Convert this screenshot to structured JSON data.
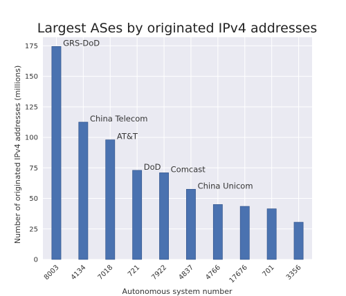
{
  "chart_data": {
    "type": "bar",
    "title": "Largest ASes by originated IPv4 addresses",
    "xlabel": "Autonomous system number",
    "ylabel": "Number of originated IPv4 addresses (millions)",
    "categories": [
      "8003",
      "4134",
      "7018",
      "721",
      "7922",
      "4837",
      "4766",
      "17676",
      "701",
      "3356"
    ],
    "values": [
      174.5,
      112.5,
      98,
      73,
      71,
      57.5,
      45,
      43.5,
      41.5,
      30.5
    ],
    "annotations": [
      "GRS-DoD",
      "China Telecom",
      "AT&T",
      "DoD",
      "Comcast",
      "China Unicom",
      "",
      "",
      "",
      ""
    ],
    "yticks": [
      0,
      25,
      50,
      75,
      100,
      125,
      150,
      175
    ],
    "ylim": [
      0,
      182
    ],
    "grid": true,
    "bar_color": "#4a72b0",
    "background_color": "#eaeaf2",
    "grid_color": "#ffffff"
  }
}
